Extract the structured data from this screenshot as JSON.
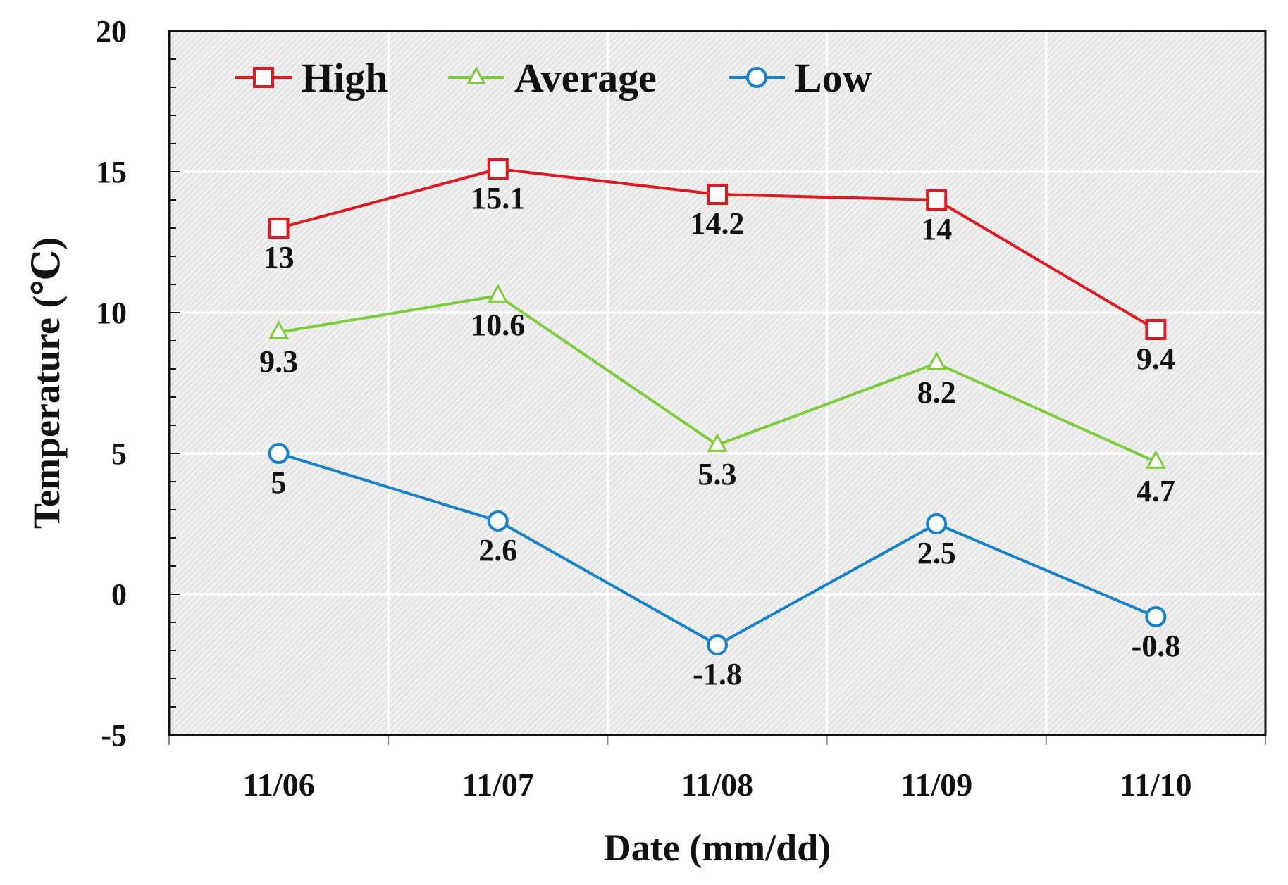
{
  "chart_data": {
    "type": "line",
    "title": "",
    "xlabel": "Date (mm/dd)",
    "ylabel": "Temperature  (℃)",
    "categories": [
      "11/06",
      "11/07",
      "11/08",
      "11/09",
      "11/10"
    ],
    "ylim": [
      -5,
      20
    ],
    "yticks": [
      -5,
      0,
      5,
      10,
      15,
      20
    ],
    "grid": true,
    "legend_position": "top-left",
    "series": [
      {
        "name": "High",
        "marker": "square",
        "color": "#e0181f",
        "values": [
          13,
          15.1,
          14.2,
          14,
          9.4
        ],
        "labels": [
          "13",
          "15.1",
          "14.2",
          "14",
          "9.4"
        ]
      },
      {
        "name": "Average",
        "marker": "triangle",
        "color": "#7ccd3c",
        "values": [
          9.3,
          10.6,
          5.3,
          8.2,
          4.7
        ],
        "labels": [
          "9.3",
          "10.6",
          "5.3",
          "8.2",
          "4.7"
        ]
      },
      {
        "name": "Low",
        "marker": "circle",
        "color": "#1682cc",
        "values": [
          5,
          2.6,
          -1.8,
          2.5,
          -0.8
        ],
        "labels": [
          "5",
          "2.6",
          "-1.8",
          "2.5",
          "-0.8"
        ]
      }
    ]
  }
}
